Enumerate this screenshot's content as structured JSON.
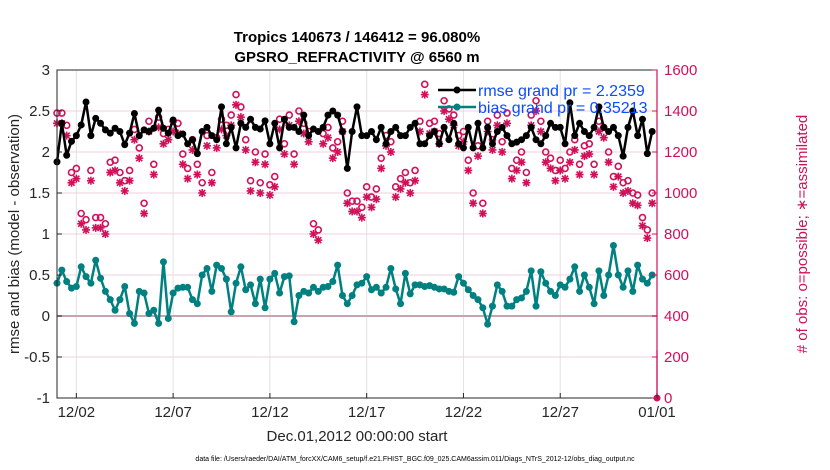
{
  "chart_data": {
    "type": "line",
    "title": [
      "Tropics 140673 / 146412 = 96.080%",
      "GPSRO_REFRACTIVITY @ 6560 m"
    ],
    "xlabel": "Dec.01,2012 00:00:00 start",
    "ylabel": "rmse and bias (model - observation)",
    "ylabel_right": "# of obs: o=possible; ∗=assimilated",
    "footnote": "data file: /Users/raeder/DAI/ATM_forcXX/CAM6_setup/f.e21.FHIST_BGC.f09_025.CAM6assim.011/Diags_NTrS_2012-12/obs_diag_output.nc",
    "x_unit": "days since Dec.01,2012 00:00:00",
    "x_step_days": 0.25,
    "xlim": [
      0,
      31
    ],
    "ylim": [
      -1,
      3
    ],
    "ylim_right": [
      0,
      1600
    ],
    "x_ticks": [
      {
        "day": 1,
        "label": "12/02"
      },
      {
        "day": 6,
        "label": "12/07"
      },
      {
        "day": 11,
        "label": "12/12"
      },
      {
        "day": 16,
        "label": "12/17"
      },
      {
        "day": 21,
        "label": "12/22"
      },
      {
        "day": 26,
        "label": "12/27"
      },
      {
        "day": 31,
        "label": "01/01"
      }
    ],
    "y_ticks": [
      "-1",
      "-0.5",
      "0",
      "0.5",
      "1",
      "1.5",
      "2",
      "2.5",
      "3"
    ],
    "y_ticks_right": [
      "0",
      "200",
      "400",
      "600",
      "800",
      "1000",
      "1200",
      "1400",
      "1600"
    ],
    "grid": true,
    "legend_placement": "top-right",
    "colors": {
      "rmse": "#000000",
      "bias": "#008080",
      "obs": "#d1105a",
      "legend_text": "#0a4cff",
      "zero_line": "#c9a3ae"
    },
    "series": [
      {
        "name": "rmse grand pr = 2.2359",
        "values": [
          1.88,
          2.35,
          1.96,
          2.13,
          2.2,
          2.33,
          2.61,
          2.2,
          2.41,
          2.35,
          2.27,
          2.23,
          2.29,
          2.25,
          2.09,
          2.23,
          2.47,
          2.2,
          2.27,
          2.25,
          2.29,
          2.51,
          2.29,
          2.23,
          2.39,
          2.2,
          2.22,
          2.1,
          2.15,
          1.98,
          2.25,
          2.3,
          2.2,
          2.15,
          2.55,
          2.1,
          2.3,
          2.05,
          2.35,
          2.3,
          2.4,
          2.3,
          2.28,
          2.38,
          2.1,
          2.35,
          2.05,
          2.4,
          2.3,
          2.3,
          2.25,
          2.45,
          2.2,
          2.28,
          2.25,
          2.3,
          2.45,
          2.5,
          2.45,
          2.25,
          1.8,
          2.25,
          2.55,
          2.2,
          2.2,
          2.25,
          2.15,
          2.3,
          2.1,
          2.25,
          2.3,
          2.2,
          2.2,
          2.3,
          2.35,
          2.1,
          2.1,
          2.2,
          2.25,
          2.1,
          2.3,
          2.15,
          2.35,
          2.1,
          2.05,
          2.3,
          2.05,
          2.35,
          2.05,
          2.3,
          2.1,
          2.25,
          2.3,
          2.2,
          2.1,
          2.12,
          2.15,
          2.2,
          2.3,
          2.15,
          2.1,
          2.2,
          2.35,
          2.3,
          2.3,
          2.1,
          2.6,
          2.2,
          2.35,
          2.25,
          2.2,
          2.3,
          2.55,
          2.3,
          2.25,
          2.3,
          2.2,
          1.95,
          2.3,
          2.5,
          2.2,
          2.4,
          1.98,
          2.25
        ]
      },
      {
        "name": "bias grand pr = 0.35213",
        "values": [
          0.4,
          0.56,
          0.42,
          0.34,
          0.36,
          0.6,
          0.48,
          0.4,
          0.68,
          0.46,
          0.3,
          0.2,
          0.07,
          0.2,
          0.36,
          0.03,
          -0.09,
          0.3,
          0.28,
          0.03,
          0.07,
          -0.09,
          0.66,
          -0.03,
          0.28,
          0.34,
          0.35,
          0.35,
          0.2,
          0.15,
          0.5,
          0.58,
          0.3,
          0.62,
          0.58,
          0.45,
          0.05,
          0.4,
          0.6,
          0.32,
          0.38,
          0.15,
          0.45,
          0.1,
          0.45,
          0.52,
          0.28,
          0.48,
          0.49,
          -0.07,
          0.25,
          0.3,
          0.28,
          0.35,
          0.3,
          0.35,
          0.36,
          0.42,
          0.62,
          0.25,
          0.15,
          0.25,
          0.38,
          0.4,
          0.48,
          0.32,
          0.35,
          0.28,
          0.35,
          0.58,
          0.33,
          0.15,
          0.52,
          0.27,
          0.38,
          0.38,
          0.36,
          0.37,
          0.35,
          0.33,
          0.33,
          0.3,
          0.29,
          0.48,
          0.4,
          0.32,
          0.25,
          0.2,
          0.1,
          -0.1,
          0.12,
          0.38,
          0.3,
          0.12,
          0.12,
          0.2,
          0.22,
          0.3,
          0.55,
          0.12,
          0.54,
          0.4,
          0.3,
          0.25,
          0.38,
          0.35,
          0.45,
          0.6,
          0.3,
          0.5,
          0.35,
          0.15,
          0.55,
          0.25,
          0.5,
          0.86,
          0.5,
          0.35,
          0.55,
          0.3,
          0.62,
          0.45,
          0.4,
          0.5
        ]
      },
      {
        "name": "possible",
        "axis": "right",
        "values": [
          1390,
          1390,
          1330,
          1100,
          1120,
          900,
          870,
          1110,
          880,
          880,
          850,
          1150,
          1160,
          1100,
          1060,
          1110,
          1310,
          1220,
          950,
          1350,
          1140,
          1370,
          1290,
          1310,
          1350,
          1340,
          1190,
          1120,
          1260,
          1140,
          1050,
          1280,
          1100,
          1270,
          1360,
          1330,
          1380,
          1480,
          1420,
          1260,
          1060,
          1200,
          1050,
          1190,
          1040,
          1080,
          1360,
          1240,
          1380,
          1190,
          1400,
          1340,
          1300,
          850,
          820,
          1290,
          1320,
          1220,
          1250,
          1350,
          1000,
          960,
          960,
          930,
          1030,
          980,
          1020,
          1170,
          1280,
          1250,
          1030,
          1070,
          1100,
          1050,
          1110,
          1350,
          1530,
          1340,
          1350,
          1290,
          1450,
          1410,
          1380,
          1280,
          1300,
          1160,
          1000,
          1230,
          950,
          1350,
          1260,
          1380,
          1250,
          1390,
          1120,
          1160,
          1200,
          1100,
          1380,
          1450,
          1350,
          1200,
          1170,
          1110,
          1160,
          1120,
          1200,
          1260,
          1140,
          1230,
          1240,
          1140,
          1350,
          1320,
          1200,
          1080,
          1130,
          1050,
          1060,
          1000,
          990,
          880,
          820,
          1000
        ]
      },
      {
        "name": "assimilated",
        "axis": "right",
        "values": [
          1340,
          1340,
          1280,
          1050,
          1070,
          850,
          820,
          1060,
          830,
          830,
          800,
          1100,
          1110,
          1050,
          1010,
          1060,
          1260,
          1170,
          900,
          1300,
          1090,
          1320,
          1240,
          1260,
          1300,
          1290,
          1140,
          1070,
          1210,
          1090,
          1000,
          1230,
          1050,
          1220,
          1310,
          1280,
          1330,
          1430,
          1370,
          1210,
          1010,
          1150,
          1000,
          1140,
          990,
          1030,
          1310,
          1190,
          1330,
          1140,
          1350,
          1290,
          1250,
          800,
          770,
          1240,
          1270,
          1170,
          1200,
          1300,
          950,
          910,
          910,
          880,
          980,
          930,
          970,
          1120,
          1230,
          1200,
          980,
          1020,
          1050,
          1000,
          1060,
          1300,
          1480,
          1290,
          1300,
          1240,
          1400,
          1360,
          1330,
          1230,
          1250,
          1110,
          950,
          1180,
          900,
          1300,
          1210,
          1330,
          1200,
          1340,
          1070,
          1110,
          1150,
          1050,
          1330,
          1400,
          1300,
          1150,
          1120,
          1060,
          1110,
          1070,
          1150,
          1210,
          1090,
          1180,
          1190,
          1090,
          1300,
          1270,
          1150,
          1030,
          1080,
          1000,
          1010,
          950,
          940,
          840,
          780,
          950
        ]
      }
    ],
    "final_obs_point": {
      "day": 31,
      "value": 0
    }
  }
}
